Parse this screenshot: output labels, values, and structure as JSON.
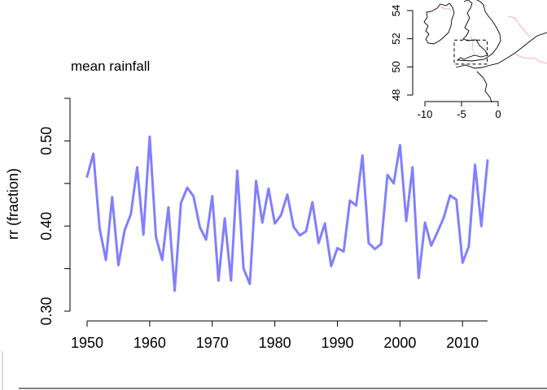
{
  "chart_data": [
    {
      "type": "line",
      "title": "mean rainfall",
      "ylabel": "rr  (fraction)",
      "xlabel": "",
      "xlim": [
        1950,
        2014
      ],
      "ylim": [
        0.3,
        0.55
      ],
      "xticks": [
        "1950",
        "1960",
        "1970",
        "1980",
        "1990",
        "2000",
        "2010"
      ],
      "yticks": [
        "0.30",
        "0.40",
        "0.50"
      ],
      "line_color": "#8080ff",
      "series": [
        {
          "x": [
            1950,
            1951,
            1952,
            1953,
            1954,
            1955,
            1956,
            1957,
            1958,
            1959,
            1960,
            1961,
            1962,
            1963,
            1964,
            1965,
            1966,
            1967,
            1968,
            1969,
            1970,
            1971,
            1972,
            1973,
            1974,
            1975,
            1976,
            1977,
            1978,
            1979,
            1980,
            1981,
            1982,
            1983,
            1984,
            1985,
            1986,
            1987,
            1988,
            1989,
            1990,
            1991,
            1992,
            1993,
            1994,
            1995,
            1996,
            1997,
            1998,
            1999,
            2000,
            2001,
            2002,
            2003,
            2004,
            2005,
            2006,
            2007,
            2008,
            2009,
            2010,
            2011,
            2012,
            2013,
            2014
          ],
          "values": [
            0.458,
            0.485,
            0.397,
            0.36,
            0.434,
            0.354,
            0.395,
            0.414,
            0.469,
            0.39,
            0.505,
            0.387,
            0.36,
            0.422,
            0.324,
            0.427,
            0.445,
            0.435,
            0.399,
            0.384,
            0.435,
            0.336,
            0.409,
            0.336,
            0.465,
            0.35,
            0.332,
            0.453,
            0.404,
            0.444,
            0.403,
            0.413,
            0.437,
            0.399,
            0.389,
            0.394,
            0.428,
            0.38,
            0.403,
            0.353,
            0.374,
            0.37,
            0.43,
            0.424,
            0.483,
            0.38,
            0.373,
            0.379,
            0.46,
            0.45,
            0.495,
            0.406,
            0.469,
            0.339,
            0.404,
            0.377,
            0.393,
            0.41,
            0.436,
            0.431,
            0.357,
            0.376,
            0.472,
            0.4,
            0.477
          ]
        }
      ]
    },
    {
      "type": "map",
      "xticks": [
        "-10",
        "-5",
        "0"
      ],
      "yticks": [
        "48",
        "50",
        "52",
        "54"
      ],
      "xlim": [
        -12.5,
        4
      ],
      "ylim": [
        47.5,
        55
      ],
      "region_box": {
        "lon": [
          -6,
          -1.5
        ],
        "lat": [
          50.2,
          51.9
        ]
      }
    }
  ]
}
